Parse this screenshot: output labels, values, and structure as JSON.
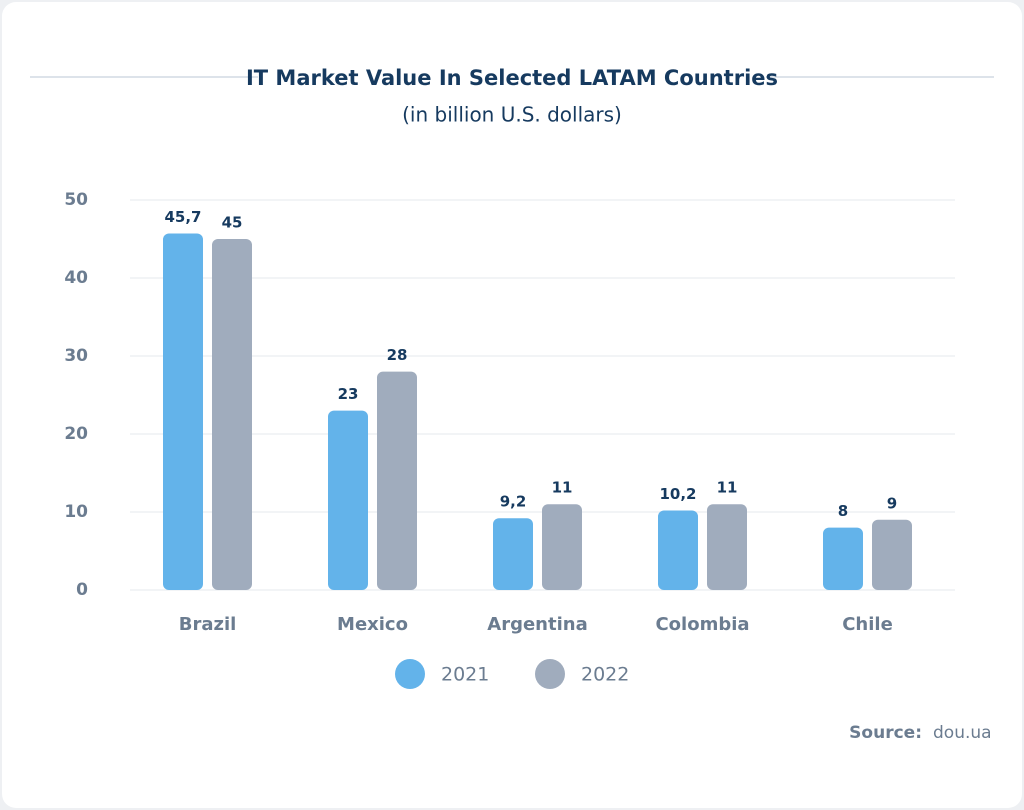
{
  "chart_data": {
    "type": "bar",
    "title": "IT Market Value In Selected LATAM Countries",
    "subtitle": "(in billion U.S. dollars)",
    "categories": [
      "Brazil",
      "Mexico",
      "Argentina",
      "Colombia",
      "Chile"
    ],
    "series": [
      {
        "name": "2021",
        "color": "#63b3ea",
        "values": [
          45.7,
          23,
          9.2,
          10.2,
          8
        ],
        "value_labels": [
          "45,7",
          "23",
          "9,2",
          "10,2",
          "8"
        ]
      },
      {
        "name": "2022",
        "color": "#a0acbd",
        "values": [
          45,
          28,
          11,
          11,
          9
        ]
      }
    ],
    "ylim": [
      0,
      50
    ],
    "yticks": [
      0,
      10,
      20,
      30,
      40,
      50
    ],
    "grid": true,
    "source_label": "Source:",
    "source": "dou.ua"
  }
}
